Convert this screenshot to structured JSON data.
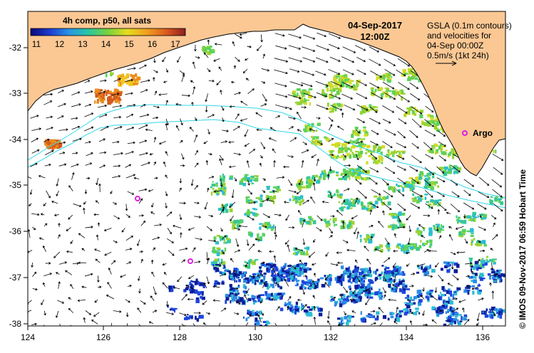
{
  "colorbar": {
    "title": "4h comp, p50, all sats",
    "ticks": [
      "11",
      "12",
      "13",
      "14",
      "15",
      "16",
      "17"
    ],
    "colors": [
      "#0a0a78",
      "#1e3cd2",
      "#2896e6",
      "#28c8a0",
      "#78d23c",
      "#e6dc1e",
      "#f0a01e",
      "#dc5a1e",
      "#8c1e1e"
    ]
  },
  "header": {
    "date": "04-Sep-2017",
    "time": "12:00Z"
  },
  "legend": {
    "line1": "GSLA (0.1m contours)",
    "line2": "and velocities for",
    "line3": "04-Sep 00:00Z",
    "line4": "0.5m/s (1kt 24h)"
  },
  "markers": {
    "argo_label": "Argo",
    "color": "#e020e0"
  },
  "axes": {
    "x_ticks": [
      "124",
      "126",
      "128",
      "130",
      "132",
      "134",
      "136"
    ],
    "y_ticks": [
      "-32",
      "-33",
      "-34",
      "-35",
      "-36",
      "-37",
      "-38"
    ]
  },
  "credit": "© IMOS 09-Nov-2017 06:59 Hobart Time",
  "colors": {
    "land": "#fbc894",
    "contour": "#30d8e8"
  }
}
